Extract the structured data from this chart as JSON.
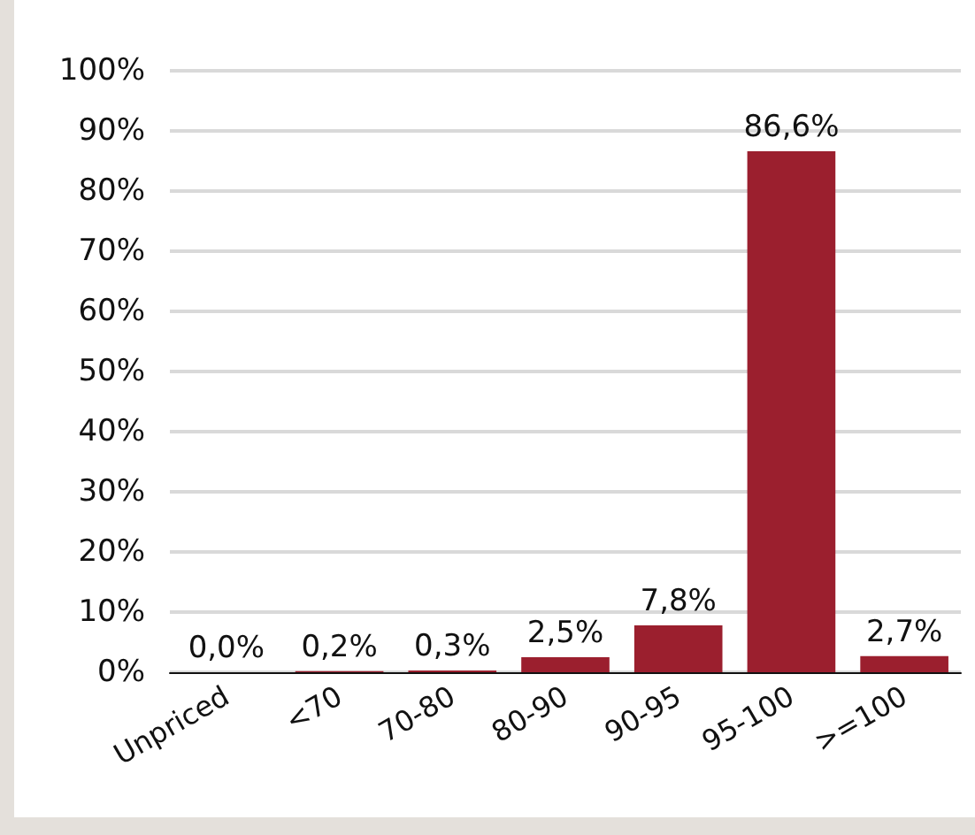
{
  "chart_data": {
    "type": "bar",
    "categories": [
      "Unpriced",
      "<70",
      "70-80",
      "80-90",
      "90-95",
      "95-100",
      ">=100"
    ],
    "values": [
      0.0,
      0.2,
      0.3,
      2.5,
      7.8,
      86.6,
      2.7
    ],
    "value_labels": [
      "0,0%",
      "0,2%",
      "0,3%",
      "2,5%",
      "7,8%",
      "86,6%",
      "2,7%"
    ],
    "color": "#9b1f2e",
    "ylim": [
      0,
      100
    ],
    "yticks": [
      {
        "value": 0,
        "label": "0%"
      },
      {
        "value": 10,
        "label": "10%"
      },
      {
        "value": 20,
        "label": "20%"
      },
      {
        "value": 30,
        "label": "30%"
      },
      {
        "value": 40,
        "label": "40%"
      },
      {
        "value": 50,
        "label": "50%"
      },
      {
        "value": 60,
        "label": "60%"
      },
      {
        "value": 70,
        "label": "70%"
      },
      {
        "value": 80,
        "label": "80%"
      },
      {
        "value": 90,
        "label": "90%"
      },
      {
        "value": 100,
        "label": "100%"
      }
    ],
    "grid": "y"
  }
}
